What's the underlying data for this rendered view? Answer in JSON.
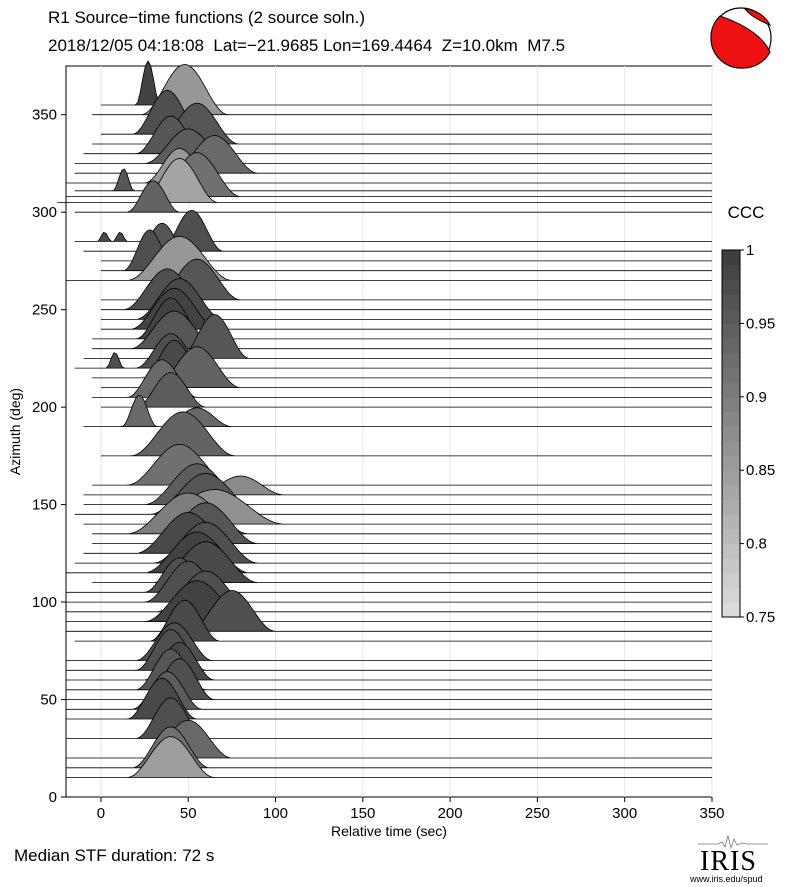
{
  "header": {
    "title": "R1 Source−time functions (2 source soln.)",
    "subtitle": "2018/12/05 04:18:08  Lat=−21.9685 Lon=169.4464  Z=10.0km  M7.5"
  },
  "footer": {
    "median_duration": "Median STF duration: 72 s",
    "logo_text": "IRIS",
    "logo_url": "www.iris.edu/spud"
  },
  "chart_data": {
    "type": "area",
    "title": "R1 Source−time functions (2 source soln.)",
    "xlabel": "Relative time (sec)",
    "ylabel": "Azimuth (deg)",
    "xlim": [
      -20,
      350
    ],
    "ylim": [
      0,
      375
    ],
    "xticks": [
      0,
      50,
      100,
      150,
      200,
      250,
      300,
      350
    ],
    "yticks": [
      0,
      50,
      100,
      150,
      200,
      250,
      300,
      350
    ],
    "grid": true,
    "colorbar": {
      "label": "CCC",
      "range": [
        0.75,
        1
      ],
      "ticks": [
        "0.75",
        "0.8",
        "0.85",
        "0.9",
        "0.95",
        "1"
      ]
    },
    "traces": [
      {
        "az": 355,
        "ccc": 0.99,
        "start": 0,
        "pulses": [
          [
            27,
            7,
            14
          ]
        ]
      },
      {
        "az": 350,
        "ccc": 0.86,
        "start": -5,
        "pulses": [
          [
            48,
            25,
            16
          ]
        ]
      },
      {
        "az": 340,
        "ccc": 0.97,
        "start": 0,
        "pulses": [
          [
            38,
            20,
            14
          ]
        ]
      },
      {
        "az": 335,
        "ccc": 0.96,
        "start": -5,
        "pulses": [
          [
            55,
            24,
            13
          ]
        ]
      },
      {
        "az": 330,
        "ccc": 0.96,
        "start": -10,
        "pulses": [
          [
            40,
            20,
            12
          ]
        ]
      },
      {
        "az": 325,
        "ccc": 0.95,
        "start": -15,
        "pulses": [
          [
            50,
            25,
            11
          ]
        ]
      },
      {
        "az": 320,
        "ccc": 0.93,
        "start": -15,
        "pulses": [
          [
            65,
            25,
            12
          ]
        ]
      },
      {
        "az": 315,
        "ccc": 0.86,
        "start": -20,
        "pulses": [
          [
            45,
            20,
            11
          ]
        ]
      },
      {
        "az": 311,
        "ccc": 0.96,
        "start": -15,
        "pulses": [
          [
            13,
            6,
            7
          ]
        ]
      },
      {
        "az": 308,
        "ccc": 0.92,
        "start": -20,
        "pulses": [
          [
            55,
            25,
            14
          ]
        ]
      },
      {
        "az": 305,
        "ccc": 0.84,
        "start": -25,
        "pulses": [
          [
            45,
            22,
            14
          ]
        ]
      },
      {
        "az": 300,
        "ccc": 0.94,
        "start": -15,
        "pulses": [
          [
            30,
            15,
            10
          ]
        ]
      },
      {
        "az": 285,
        "ccc": 0.98,
        "start": -15,
        "pulses": [
          [
            2,
            4,
            3
          ],
          [
            11,
            4,
            3
          ]
        ]
      },
      {
        "az": 280,
        "ccc": 0.97,
        "start": -10,
        "pulses": [
          [
            52,
            18,
            13
          ]
        ]
      },
      {
        "az": 275,
        "ccc": 0.96,
        "start": 0,
        "pulses": [
          [
            35,
            17,
            12
          ]
        ]
      },
      {
        "az": 270,
        "ccc": 0.97,
        "start": 0,
        "pulses": [
          [
            28,
            15,
            13
          ]
        ]
      },
      {
        "az": 265,
        "ccc": 0.86,
        "start": -20,
        "pulses": [
          [
            45,
            30,
            14
          ]
        ]
      },
      {
        "az": 255,
        "ccc": 0.96,
        "start": 0,
        "pulses": [
          [
            55,
            25,
            13
          ]
        ]
      },
      {
        "az": 250,
        "ccc": 0.97,
        "start": 0,
        "pulses": [
          [
            38,
            25,
            13
          ]
        ]
      },
      {
        "az": 245,
        "ccc": 0.98,
        "start": 0,
        "pulses": [
          [
            45,
            25,
            13
          ]
        ]
      },
      {
        "az": 240,
        "ccc": 0.99,
        "start": 0,
        "pulses": [
          [
            42,
            25,
            13
          ]
        ]
      },
      {
        "az": 235,
        "ccc": 0.99,
        "start": -5,
        "pulses": [
          [
            40,
            20,
            13
          ]
        ]
      },
      {
        "az": 230,
        "ccc": 0.96,
        "start": -5,
        "pulses": [
          [
            42,
            25,
            12
          ]
        ]
      },
      {
        "az": 225,
        "ccc": 0.96,
        "start": -10,
        "pulses": [
          [
            65,
            20,
            14
          ]
        ]
      },
      {
        "az": 220,
        "ccc": 0.97,
        "start": -15,
        "pulses": [
          [
            8,
            5,
            5
          ],
          [
            40,
            20,
            11
          ]
        ]
      },
      {
        "az": 215,
        "ccc": 0.98,
        "start": -5,
        "pulses": [
          [
            42,
            18,
            12
          ]
        ]
      },
      {
        "az": 210,
        "ccc": 0.94,
        "start": 0,
        "pulses": [
          [
            55,
            25,
            13
          ]
        ]
      },
      {
        "az": 205,
        "ccc": 0.93,
        "start": -5,
        "pulses": [
          [
            35,
            20,
            12
          ]
        ]
      },
      {
        "az": 200,
        "ccc": 0.95,
        "start": 0,
        "pulses": [
          [
            40,
            20,
            11
          ]
        ]
      },
      {
        "az": 190,
        "ccc": 0.93,
        "start": -10,
        "pulses": [
          [
            22,
            10,
            10
          ],
          [
            55,
            20,
            6
          ]
        ]
      },
      {
        "az": 175,
        "ccc": 0.94,
        "start": 0,
        "pulses": [
          [
            47,
            30,
            14
          ]
        ]
      },
      {
        "az": 160,
        "ccc": 0.92,
        "start": -5,
        "pulses": [
          [
            45,
            30,
            13
          ]
        ]
      },
      {
        "az": 155,
        "ccc": 0.88,
        "start": -10,
        "pulses": [
          [
            80,
            25,
            6
          ]
        ]
      },
      {
        "az": 150,
        "ccc": 0.95,
        "start": -10,
        "pulses": [
          [
            55,
            30,
            13
          ]
        ]
      },
      {
        "az": 145,
        "ccc": 0.96,
        "start": -15,
        "pulses": [
          [
            60,
            32,
            13
          ]
        ]
      },
      {
        "az": 140,
        "ccc": 0.87,
        "start": -10,
        "pulses": [
          [
            65,
            40,
            11
          ]
        ]
      },
      {
        "az": 135,
        "ccc": 0.9,
        "start": -5,
        "pulses": [
          [
            50,
            35,
            13
          ]
        ]
      },
      {
        "az": 130,
        "ccc": 0.96,
        "start": -5,
        "pulses": [
          [
            60,
            30,
            13
          ]
        ]
      },
      {
        "az": 125,
        "ccc": 0.98,
        "start": -10,
        "pulses": [
          [
            50,
            30,
            13
          ]
        ]
      },
      {
        "az": 120,
        "ccc": 0.97,
        "start": -15,
        "pulses": [
          [
            60,
            30,
            13
          ]
        ]
      },
      {
        "az": 115,
        "ccc": 0.99,
        "start": -20,
        "pulses": [
          [
            55,
            30,
            13
          ]
        ]
      },
      {
        "az": 110,
        "ccc": 0.98,
        "start": -5,
        "pulses": [
          [
            60,
            30,
            13
          ]
        ]
      },
      {
        "az": 105,
        "ccc": 0.97,
        "start": -20,
        "pulses": [
          [
            45,
            20,
            11
          ]
        ]
      },
      {
        "az": 100,
        "ccc": 0.97,
        "start": -20,
        "pulses": [
          [
            50,
            25,
            13
          ]
        ]
      },
      {
        "az": 95,
        "ccc": 0.97,
        "start": -20,
        "pulses": [
          [
            60,
            28,
            13
          ]
        ]
      },
      {
        "az": 90,
        "ccc": 0.99,
        "start": -20,
        "pulses": [
          [
            55,
            30,
            13
          ]
        ]
      },
      {
        "az": 85,
        "ccc": 0.97,
        "start": -20,
        "pulses": [
          [
            75,
            25,
            13
          ]
        ]
      },
      {
        "az": 80,
        "ccc": 0.98,
        "start": -15,
        "pulses": [
          [
            48,
            20,
            13
          ]
        ]
      },
      {
        "az": 70,
        "ccc": 0.97,
        "start": -20,
        "pulses": [
          [
            42,
            22,
            12
          ]
        ]
      },
      {
        "az": 65,
        "ccc": 0.97,
        "start": -20,
        "pulses": [
          [
            40,
            20,
            13
          ]
        ]
      },
      {
        "az": 60,
        "ccc": 0.98,
        "start": -20,
        "pulses": [
          [
            45,
            20,
            12
          ]
        ]
      },
      {
        "az": 55,
        "ccc": 0.96,
        "start": -20,
        "pulses": [
          [
            40,
            20,
            13
          ]
        ]
      },
      {
        "az": 50,
        "ccc": 0.97,
        "start": -20,
        "pulses": [
          [
            45,
            20,
            13
          ]
        ]
      },
      {
        "az": 45,
        "ccc": 0.95,
        "start": -20,
        "pulses": [
          [
            38,
            20,
            12
          ]
        ]
      },
      {
        "az": 40,
        "ccc": 0.98,
        "start": -20,
        "pulses": [
          [
            35,
            20,
            13
          ]
        ]
      },
      {
        "az": 30,
        "ccc": 0.97,
        "start": -20,
        "pulses": [
          [
            40,
            20,
            13
          ]
        ]
      },
      {
        "az": 20,
        "ccc": 0.93,
        "start": -20,
        "pulses": [
          [
            50,
            25,
            12
          ]
        ]
      },
      {
        "az": 15,
        "ccc": 0.92,
        "start": -20,
        "pulses": [
          [
            40,
            22,
            13
          ]
        ]
      },
      {
        "az": 10,
        "ccc": 0.85,
        "start": -20,
        "pulses": [
          [
            40,
            25,
            13
          ]
        ]
      }
    ]
  }
}
